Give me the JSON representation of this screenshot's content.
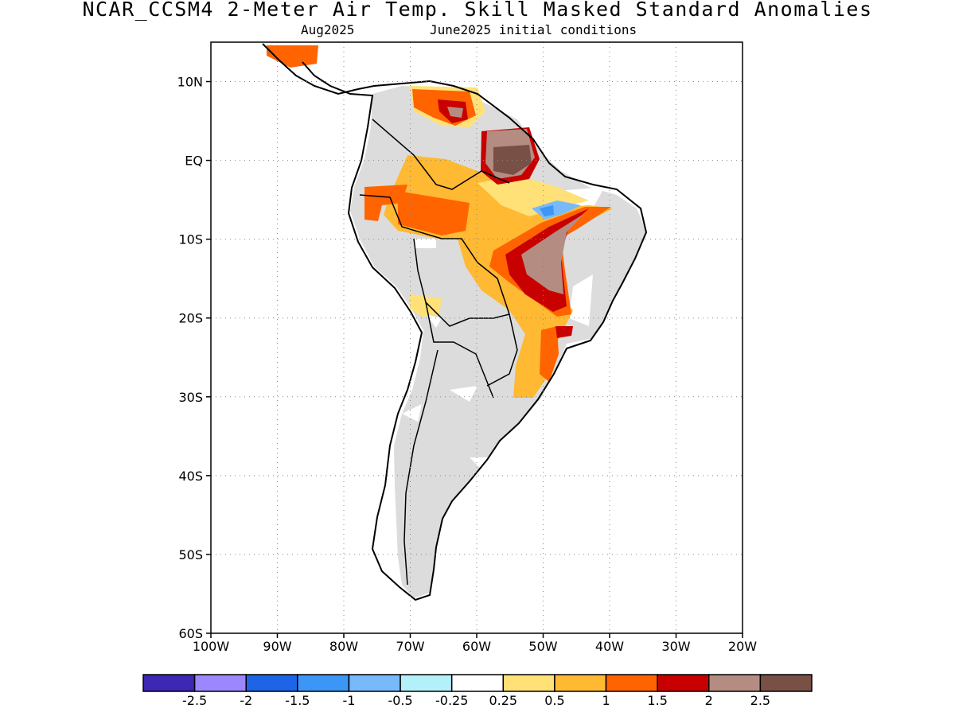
{
  "header": {
    "title": "NCAR_CCSM4 2-Meter Air Temp. Skill Masked Standard Anomalies",
    "valid_month": "Aug2025",
    "initial_conditions": "June2025 initial conditions"
  },
  "map": {
    "region": "South America",
    "lon_range": [
      -100,
      -20
    ],
    "lat_range": [
      -60,
      15
    ],
    "lat_ticks": [
      "10N",
      "EQ",
      "10S",
      "20S",
      "30S",
      "40S",
      "50S",
      "60S"
    ],
    "lon_ticks": [
      "100W",
      "90W",
      "80W",
      "70W",
      "60W",
      "50W",
      "40W",
      "30W",
      "20W"
    ],
    "grid": "dotted",
    "masked_color": "#dcdcdc",
    "coastline_color": "#000000"
  },
  "legend": {
    "labels": [
      "-2.5",
      "-2",
      "-1.5",
      "-1",
      "-0.5",
      "-0.25",
      "0.25",
      "0.5",
      "1",
      "1.5",
      "2",
      "2.5"
    ],
    "colors": [
      "#3c28b4",
      "#9d87ff",
      "#1e64e6",
      "#3c96f5",
      "#78b9fa",
      "#b4f0fa",
      "#ffffff",
      "#ffe178",
      "#ffb932",
      "#ff6400",
      "#c80000",
      "#b48c82",
      "#785046"
    ]
  }
}
